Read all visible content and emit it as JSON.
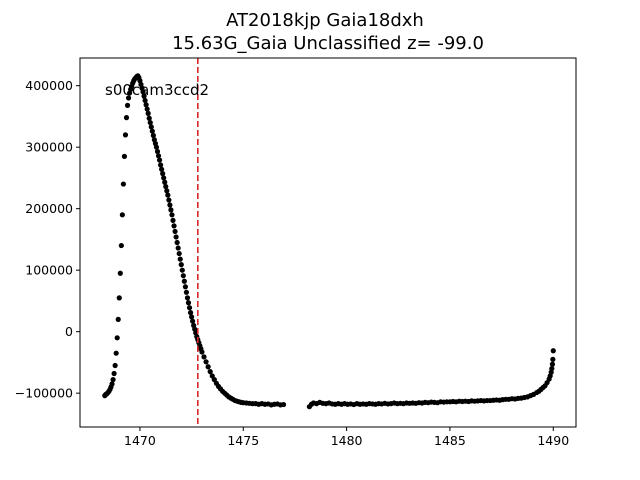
{
  "chart_data": {
    "type": "scatter",
    "title_line1": "AT2018kjp  Gaia18dxh",
    "title_line2": "15.63G_Gaia Unclassified z= -99.0",
    "xlabel": "",
    "ylabel": "",
    "xlim": [
      1467.1,
      1491.1
    ],
    "ylim": [
      -155000,
      445000
    ],
    "x_ticks": [
      1470,
      1475,
      1480,
      1485,
      1490
    ],
    "y_ticks": [
      -100000,
      0,
      100000,
      200000,
      300000,
      400000
    ],
    "x_tick_labels": [
      "1470",
      "1475",
      "1480",
      "1485",
      "1490"
    ],
    "y_tick_labels": [
      "−100000",
      "0",
      "100000",
      "200000",
      "300000",
      "400000"
    ],
    "grid": false,
    "annotation": "s00cam3ccd2",
    "vline": {
      "x": 1472.8,
      "color": "#d62728",
      "style": "dashed"
    },
    "marker_color": "#000000",
    "series": [
      {
        "points": [
          [
            1468.3,
            -104000
          ],
          [
            1468.35,
            -102000
          ],
          [
            1468.4,
            -101000
          ],
          [
            1468.45,
            -99000
          ],
          [
            1468.5,
            -97000
          ],
          [
            1468.55,
            -94000
          ],
          [
            1468.6,
            -90000
          ],
          [
            1468.65,
            -85000
          ],
          [
            1468.7,
            -78000
          ],
          [
            1468.75,
            -68000
          ],
          [
            1468.8,
            -55000
          ],
          [
            1468.85,
            -35000
          ],
          [
            1468.9,
            -10000
          ],
          [
            1468.95,
            20000
          ],
          [
            1469.0,
            55000
          ],
          [
            1469.05,
            95000
          ],
          [
            1469.1,
            140000
          ],
          [
            1469.15,
            190000
          ],
          [
            1469.2,
            240000
          ],
          [
            1469.25,
            285000
          ],
          [
            1469.3,
            320000
          ],
          [
            1469.35,
            348000
          ],
          [
            1469.4,
            368000
          ],
          [
            1469.45,
            380000
          ],
          [
            1469.5,
            388000
          ],
          [
            1469.55,
            394000
          ],
          [
            1469.6,
            399000
          ],
          [
            1469.65,
            404000
          ],
          [
            1469.7,
            408000
          ],
          [
            1469.75,
            411000
          ],
          [
            1469.8,
            413000
          ],
          [
            1469.85,
            415000
          ],
          [
            1469.9,
            416000
          ],
          [
            1469.95,
            413000
          ],
          [
            1470.0,
            408000
          ],
          [
            1470.05,
            402000
          ],
          [
            1470.1,
            396000
          ],
          [
            1470.15,
            390000
          ],
          [
            1470.2,
            383000
          ],
          [
            1470.25,
            376000
          ],
          [
            1470.3,
            369000
          ],
          [
            1470.35,
            362000
          ],
          [
            1470.4,
            355000
          ],
          [
            1470.45,
            347000
          ],
          [
            1470.5,
            340000
          ],
          [
            1470.55,
            333000
          ],
          [
            1470.6,
            326000
          ],
          [
            1470.65,
            319000
          ],
          [
            1470.7,
            312000
          ],
          [
            1470.75,
            306000
          ],
          [
            1470.8,
            300000
          ],
          [
            1470.85,
            293000
          ],
          [
            1470.9,
            286000
          ],
          [
            1470.95,
            279000
          ],
          [
            1471.0,
            271000
          ],
          [
            1471.05,
            264000
          ],
          [
            1471.1,
            257000
          ],
          [
            1471.15,
            250000
          ],
          [
            1471.2,
            243000
          ],
          [
            1471.25,
            236000
          ],
          [
            1471.3,
            229000
          ],
          [
            1471.35,
            222000
          ],
          [
            1471.4,
            214000
          ],
          [
            1471.45,
            206000
          ],
          [
            1471.5,
            198000
          ],
          [
            1471.55,
            190000
          ],
          [
            1471.6,
            181000
          ],
          [
            1471.65,
            172000
          ],
          [
            1471.7,
            163000
          ],
          [
            1471.75,
            154000
          ],
          [
            1471.8,
            145000
          ],
          [
            1471.85,
            136000
          ],
          [
            1471.9,
            127000
          ],
          [
            1471.95,
            118000
          ],
          [
            1472.0,
            109000
          ],
          [
            1472.05,
            100000
          ],
          [
            1472.1,
            91000
          ],
          [
            1472.15,
            82000
          ],
          [
            1472.2,
            73000
          ],
          [
            1472.25,
            64000
          ],
          [
            1472.3,
            55000
          ],
          [
            1472.35,
            47000
          ],
          [
            1472.4,
            39000
          ],
          [
            1472.45,
            31000
          ],
          [
            1472.5,
            24000
          ],
          [
            1472.55,
            17000
          ],
          [
            1472.6,
            10000
          ],
          [
            1472.65,
            4000
          ],
          [
            1472.7,
            -2000
          ],
          [
            1472.75,
            -8000
          ],
          [
            1472.8,
            -13000
          ],
          [
            1472.85,
            -18000
          ],
          [
            1472.9,
            -23000
          ],
          [
            1472.95,
            -28000
          ],
          [
            1473.0,
            -33000
          ],
          [
            1473.1,
            -41000
          ],
          [
            1473.2,
            -49000
          ],
          [
            1473.3,
            -57000
          ],
          [
            1473.4,
            -65000
          ],
          [
            1473.5,
            -72000
          ],
          [
            1473.6,
            -78000
          ],
          [
            1473.7,
            -84000
          ],
          [
            1473.8,
            -89000
          ],
          [
            1473.9,
            -93000
          ],
          [
            1474.0,
            -97000
          ],
          [
            1474.1,
            -100000
          ],
          [
            1474.2,
            -103000
          ],
          [
            1474.3,
            -106000
          ],
          [
            1474.4,
            -108000
          ],
          [
            1474.5,
            -110000
          ],
          [
            1474.6,
            -112000
          ],
          [
            1474.7,
            -113000
          ],
          [
            1474.8,
            -114000
          ],
          [
            1474.9,
            -115000
          ],
          [
            1475.0,
            -115500
          ],
          [
            1475.15,
            -116000
          ],
          [
            1475.3,
            -116500
          ],
          [
            1475.45,
            -117000
          ],
          [
            1475.6,
            -117000
          ],
          [
            1475.75,
            -118000
          ],
          [
            1475.9,
            -117000
          ],
          [
            1476.05,
            -118000
          ],
          [
            1476.2,
            -117500
          ],
          [
            1476.35,
            -119000
          ],
          [
            1476.5,
            -118000
          ],
          [
            1476.65,
            -117500
          ],
          [
            1476.8,
            -119000
          ],
          [
            1476.95,
            -118500
          ],
          [
            1478.2,
            -122000
          ],
          [
            1478.3,
            -118000
          ],
          [
            1478.4,
            -116000
          ],
          [
            1478.55,
            -117000
          ],
          [
            1478.7,
            -115000
          ],
          [
            1478.85,
            -116500
          ],
          [
            1479.0,
            -117000
          ],
          [
            1479.15,
            -116000
          ],
          [
            1479.3,
            -117500
          ],
          [
            1479.45,
            -118000
          ],
          [
            1479.6,
            -117000
          ],
          [
            1479.75,
            -118000
          ],
          [
            1479.9,
            -117000
          ],
          [
            1480.05,
            -118000
          ],
          [
            1480.2,
            -117500
          ],
          [
            1480.35,
            -118500
          ],
          [
            1480.5,
            -117000
          ],
          [
            1480.65,
            -118000
          ],
          [
            1480.8,
            -117500
          ],
          [
            1480.95,
            -118000
          ],
          [
            1481.1,
            -117000
          ],
          [
            1481.25,
            -117500
          ],
          [
            1481.4,
            -118000
          ],
          [
            1481.55,
            -117000
          ],
          [
            1481.7,
            -117500
          ],
          [
            1481.85,
            -116500
          ],
          [
            1482.0,
            -117500
          ],
          [
            1482.15,
            -117000
          ],
          [
            1482.3,
            -116000
          ],
          [
            1482.45,
            -117000
          ],
          [
            1482.6,
            -116500
          ],
          [
            1482.75,
            -117000
          ],
          [
            1482.9,
            -116000
          ],
          [
            1483.05,
            -116500
          ],
          [
            1483.2,
            -116000
          ],
          [
            1483.35,
            -116500
          ],
          [
            1483.5,
            -115500
          ],
          [
            1483.65,
            -116000
          ],
          [
            1483.8,
            -115000
          ],
          [
            1483.95,
            -115500
          ],
          [
            1484.1,
            -114500
          ],
          [
            1484.25,
            -115000
          ],
          [
            1484.4,
            -115500
          ],
          [
            1484.55,
            -114000
          ],
          [
            1484.7,
            -114500
          ],
          [
            1484.85,
            -114000
          ],
          [
            1485.0,
            -114000
          ],
          [
            1485.15,
            -113500
          ],
          [
            1485.3,
            -114000
          ],
          [
            1485.45,
            -113000
          ],
          [
            1485.6,
            -113500
          ],
          [
            1485.75,
            -113000
          ],
          [
            1485.9,
            -113500
          ],
          [
            1486.05,
            -112500
          ],
          [
            1486.2,
            -113000
          ],
          [
            1486.35,
            -112500
          ],
          [
            1486.5,
            -112000
          ],
          [
            1486.65,
            -112500
          ],
          [
            1486.8,
            -112000
          ],
          [
            1486.95,
            -112000
          ],
          [
            1487.1,
            -111500
          ],
          [
            1487.25,
            -111000
          ],
          [
            1487.4,
            -111500
          ],
          [
            1487.55,
            -110500
          ],
          [
            1487.7,
            -110000
          ],
          [
            1487.85,
            -110000
          ],
          [
            1488.0,
            -109000
          ],
          [
            1488.15,
            -109500
          ],
          [
            1488.3,
            -108500
          ],
          [
            1488.45,
            -108000
          ],
          [
            1488.6,
            -107000
          ],
          [
            1488.75,
            -106000
          ],
          [
            1488.9,
            -104000
          ],
          [
            1489.05,
            -102000
          ],
          [
            1489.2,
            -99000
          ],
          [
            1489.3,
            -97000
          ],
          [
            1489.4,
            -94000
          ],
          [
            1489.5,
            -91000
          ],
          [
            1489.6,
            -88000
          ],
          [
            1489.7,
            -83000
          ],
          [
            1489.8,
            -77000
          ],
          [
            1489.85,
            -72000
          ],
          [
            1489.9,
            -66000
          ],
          [
            1489.93,
            -60000
          ],
          [
            1489.96,
            -53000
          ],
          [
            1489.98,
            -45000
          ],
          [
            1490.0,
            -31000
          ]
        ]
      }
    ]
  }
}
